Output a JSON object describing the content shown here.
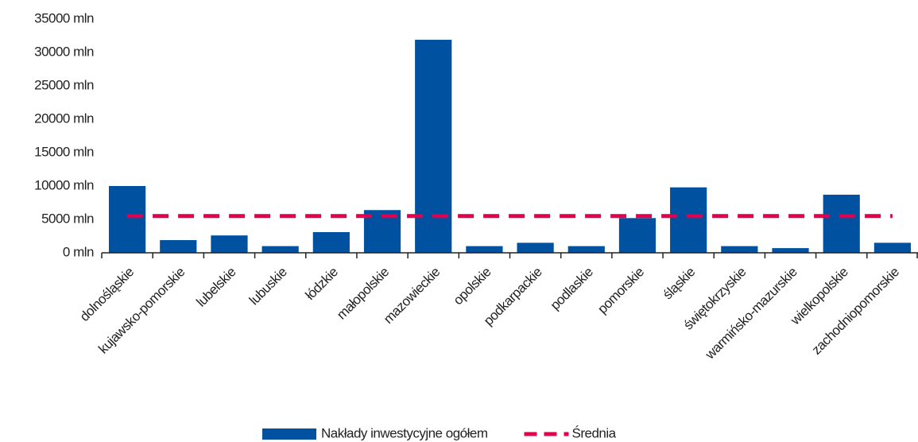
{
  "chart_data": {
    "type": "bar",
    "categories": [
      "dolnośląskie",
      "kujawsko-pomorskie",
      "lubelskie",
      "lubuskie",
      "łódzkie",
      "małopolskie",
      "mazowieckie",
      "opolskie",
      "podkarpackie",
      "podlaskie",
      "pomorskie",
      "śląskie",
      "świętokrzyskie",
      "warmińsko-mazurskie",
      "wielkopolskie",
      "zachodniopomorskie"
    ],
    "series": [
      {
        "name": "Nakłady inwestycyjne ogółem",
        "color": "#0052a0",
        "type": "bar",
        "values": [
          10000,
          1900,
          2600,
          1000,
          3100,
          6400,
          31900,
          1000,
          1500,
          1000,
          5200,
          9800,
          1000,
          700,
          8700,
          1500
        ]
      },
      {
        "name": "Średnia",
        "color": "#e0004d",
        "type": "line",
        "dashed": true,
        "values": [
          5500,
          5500,
          5500,
          5500,
          5500,
          5500,
          5500,
          5500,
          5500,
          5500,
          5500,
          5500,
          5500,
          5500,
          5500,
          5500
        ]
      }
    ],
    "ylim": [
      0,
      35000
    ],
    "yticks": [
      {
        "value": 0,
        "label": "0 mln"
      },
      {
        "value": 5000,
        "label": "5000 mln"
      },
      {
        "value": 10000,
        "label": "10000 mln"
      },
      {
        "value": 15000,
        "label": "15000 mln"
      },
      {
        "value": 20000,
        "label": "20000 mln"
      },
      {
        "value": 25000,
        "label": "25000 mln"
      },
      {
        "value": 30000,
        "label": "30000 mln"
      },
      {
        "value": 35000,
        "label": "35000 mln"
      }
    ],
    "grid": false,
    "legend": "bottom"
  }
}
